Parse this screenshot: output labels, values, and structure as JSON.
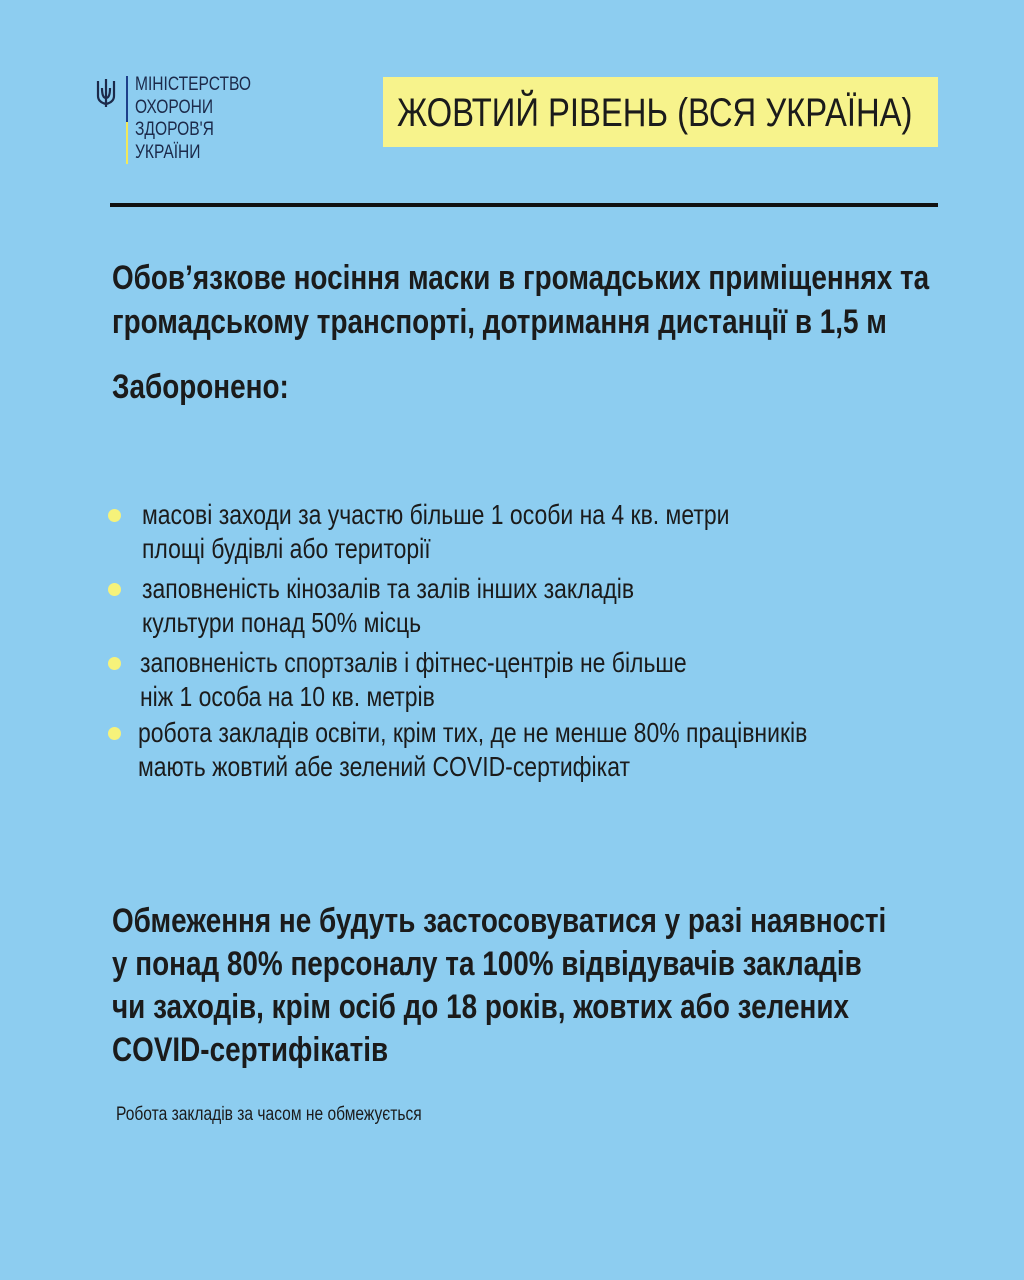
{
  "logo": {
    "lines": [
      "МІНІСТЕРСТВО",
      "ОХОРОНИ",
      "ЗДОРОВ'Я",
      "УКРАЇНИ"
    ]
  },
  "level_badge": "ЖОВТИЙ РІВЕНЬ (ВСЯ УКРАЇНА)",
  "mask_rule": [
    "Обов’язкове носіння маски в громадських приміщеннях та",
    "громадському транспорті, дотримання дистанції в 1,5 м"
  ],
  "forbidden_heading": "Заборонено:",
  "forbidden_items": [
    [
      "масові заходи за участю більше 1 особи на 4 кв. метри",
      "площі будівлі або території"
    ],
    [
      "заповненість кінозалів та залів інших закладів",
      "культури понад 50% місць"
    ],
    [
      "заповненість спортзалів і фітнес-центрів не більше",
      "ніж 1 особа на 10 кв. метрів"
    ],
    [
      "робота закладів освіти, крім тих, де не менше 80% працівників",
      "мають жовтий абе зелений COVID-сертифікат"
    ]
  ],
  "restrictions_note": [
    "Обмеження не будуть застосовуватися у разі наявності",
    "у понад 80% персоналу та 100% відвідувачів закладів",
    "чи заходів, крім осіб до 18 років, жовтих або зелених",
    "COVID-сертифікатів"
  ],
  "footer_note": "Робота закладів за часом не обмежується",
  "colors": {
    "background": "#8dcdf0",
    "badge": "#f7f38c",
    "bullet": "#f6f27a"
  }
}
